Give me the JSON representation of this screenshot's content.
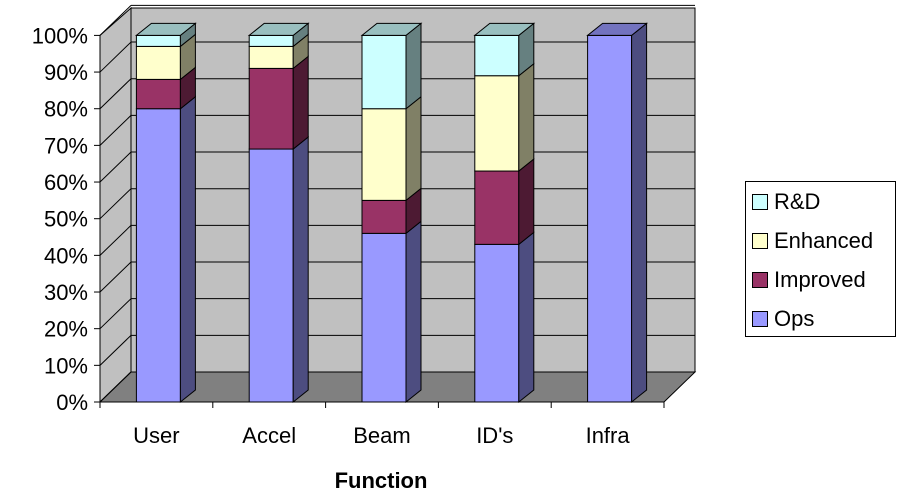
{
  "chart_data": {
    "type": "bar",
    "stacked": true,
    "three_d": true,
    "categories": [
      "User",
      "Accel",
      "Beam",
      "ID's",
      "Infra"
    ],
    "series": [
      {
        "name": "Ops",
        "color": "#9999ff",
        "values": [
          80,
          69,
          46,
          43,
          100
        ]
      },
      {
        "name": "Improved",
        "color": "#993366",
        "values": [
          8,
          22,
          9,
          20,
          0
        ]
      },
      {
        "name": "Enhanced",
        "color": "#ffffcc",
        "values": [
          9,
          6,
          25,
          26,
          0
        ]
      },
      {
        "name": "R&D",
        "color": "#ccffff",
        "values": [
          3,
          3,
          20,
          11,
          0
        ]
      }
    ],
    "y_ticks": [
      "0%",
      "10%",
      "20%",
      "30%",
      "40%",
      "50%",
      "60%",
      "70%",
      "80%",
      "90%",
      "100%"
    ],
    "ylim": [
      0,
      100
    ],
    "xlabel": "Function",
    "ylabel": "",
    "grid": true,
    "legend_position": "right",
    "wall_color": "#c0c0c0",
    "floor_color": "#808080"
  }
}
